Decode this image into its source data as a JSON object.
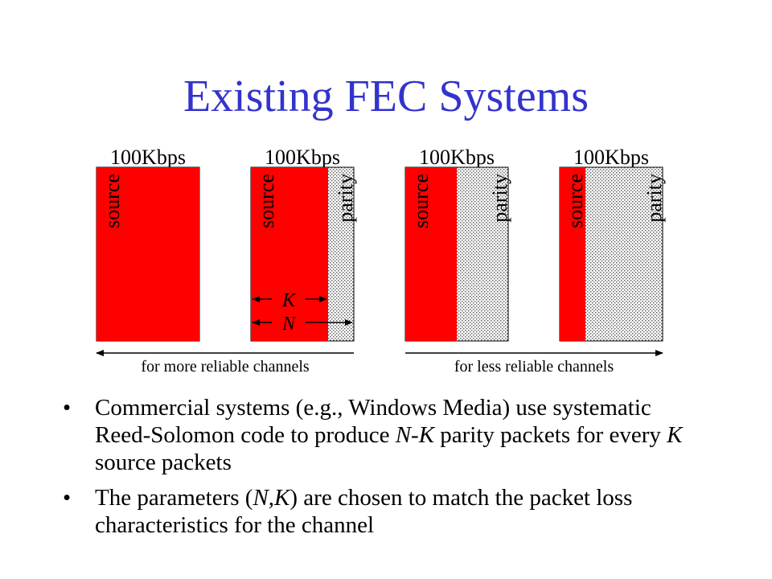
{
  "title": "Existing FEC Systems",
  "colors": {
    "title": "#3333cc",
    "source": "#ff0000",
    "parity_fill": "#ffffff"
  },
  "columns": [
    {
      "rate": "100Kbps",
      "source_label": "source",
      "parity_label": null,
      "source_fraction": 1.0
    },
    {
      "rate": "100Kbps",
      "source_label": "source",
      "parity_label": "parity",
      "source_fraction": 0.75
    },
    {
      "rate": "100Kbps",
      "source_label": "source",
      "parity_label": "parity",
      "source_fraction": 0.5
    },
    {
      "rate": "100Kbps",
      "source_label": "source",
      "parity_label": "parity",
      "source_fraction": 0.25
    }
  ],
  "markers": {
    "k": "K",
    "n": "N"
  },
  "captions": {
    "more": "for more reliable channels",
    "less": "for less reliable channels"
  },
  "bullets": {
    "b1": {
      "p1": "Commercial systems (e.g., Windows Media) use systematic Reed-Solomon code to produce ",
      "nk": "N-K",
      "p2": " parity packets for every ",
      "k": "K",
      "p3": " source packets"
    },
    "b2": {
      "p1": "The parameters (",
      "nk": "N,K",
      "p2": ") are chosen to match the packet loss characteristics for the channel"
    },
    "bullet_char": "•"
  }
}
